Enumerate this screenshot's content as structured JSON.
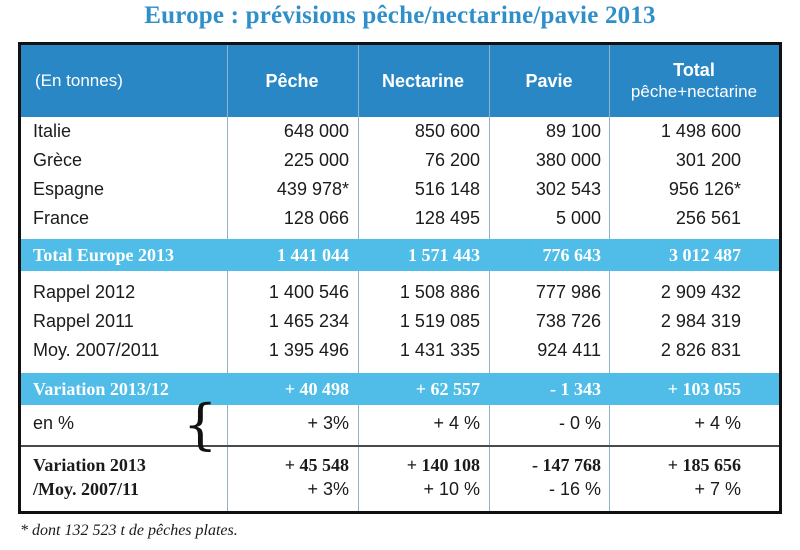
{
  "title": "Europe : prévisions pêche/nectarine/pavie 2013",
  "headers": [
    "(En tonnes)",
    "Pêche",
    "Nectarine",
    "Pavie",
    "Total",
    "pêche+nectarine"
  ],
  "country_rows": [
    {
      "label": "Italie",
      "vals": [
        "648 000",
        "850 600",
        "89 100",
        "1 498 600"
      ]
    },
    {
      "label": "Grèce",
      "vals": [
        "225 000",
        "76 200",
        "380 000",
        "301 200"
      ]
    },
    {
      "label": "Espagne",
      "vals": [
        "439 978*",
        "516 148",
        "302 543",
        "956 126*"
      ]
    },
    {
      "label": "France",
      "vals": [
        "128 066",
        "128 495",
        "5 000",
        "256 561"
      ]
    }
  ],
  "total_row": {
    "label": "Total Europe 2013",
    "vals": [
      "1 441 044",
      "1 571 443",
      "776 643",
      "3 012 487"
    ]
  },
  "rappel_rows": [
    {
      "label": "Rappel 2012",
      "vals": [
        "1 400 546",
        "1 508 886",
        "777 986",
        "2 909 432"
      ]
    },
    {
      "label": "Rappel 2011",
      "vals": [
        "1 465 234",
        "1 519 085",
        "738 726",
        "2 984 319"
      ]
    },
    {
      "label": "Moy. 2007/2011",
      "vals": [
        "1 395 496",
        "1 431 335",
        "924 411",
        "2 826 831"
      ]
    }
  ],
  "variation_row": {
    "label": "Variation 2013/12",
    "vals": [
      "+ 40 498",
      "+ 62 557",
      "- 1 343",
      "+ 103 055"
    ]
  },
  "percent_row": {
    "label": "en %",
    "vals": [
      "+ 3%",
      "+ 4 %",
      "- 0 %",
      "+ 4 %"
    ]
  },
  "variation_moy": {
    "label1": "Variation 2013",
    "label2": "/Moy. 2007/11",
    "vals": [
      "+ 45 548",
      "+ 140 108",
      "- 147 768",
      "+ 185 656"
    ],
    "pcts": [
      "+ 3%",
      "+ 10 %",
      "- 16 %",
      "+ 7 %"
    ]
  },
  "footnote": "* dont 132 523 t de pêches plates."
}
